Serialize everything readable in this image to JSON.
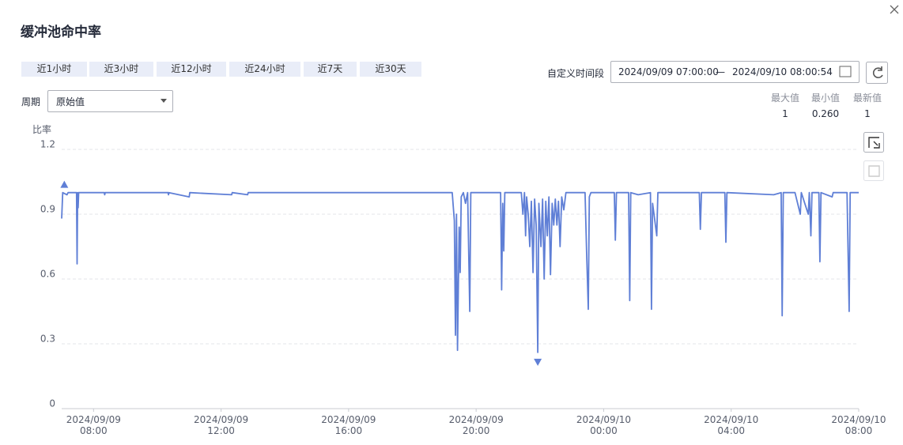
{
  "dialog": {
    "title": "缓冲池命中率",
    "ranges": [
      "近1小时",
      "近3小时",
      "近12小时",
      "近24小时",
      "近7天",
      "近30天"
    ],
    "custom_label": "自定义时间段",
    "start": "2024/09/09 07:00:00",
    "separator": "—",
    "end": "2024/09/10 08:00:54",
    "period_label": "周期",
    "period_value": "原始值",
    "stats": [
      {
        "label": "最大值",
        "value": "1"
      },
      {
        "label": "最小值",
        "value": "0.260"
      },
      {
        "label": "最新值",
        "value": "1"
      }
    ]
  },
  "chart_data": {
    "type": "line",
    "y_label": "比率",
    "grid": true,
    "ylim": [
      0,
      1.2
    ],
    "yticks": [
      0,
      0.3,
      0.6,
      0.9,
      1.2
    ],
    "xlim": [
      "2024/09/09 07:00",
      "2024/09/10 08:00"
    ],
    "xticks": [
      "2024/09/09 08:00",
      "2024/09/09 12:00",
      "2024/09/09 16:00",
      "2024/09/09 20:00",
      "2024/09/10 00:00",
      "2024/09/10 04:00",
      "2024/09/10 08:00"
    ],
    "x": [
      "2024/09/09 07:00",
      "2024/09/09 07:02",
      "2024/09/09 07:10",
      "2024/09/09 07:12",
      "2024/09/09 07:28",
      "2024/09/09 07:29",
      "2024/09/09 07:30",
      "2024/09/09 07:31",
      "2024/09/09 07:32",
      "2024/09/09 08:20",
      "2024/09/09 08:21",
      "2024/09/09 08:22",
      "2024/09/09 10:20",
      "2024/09/09 10:21",
      "2024/09/09 10:22",
      "2024/09/09 11:00",
      "2024/09/09 11:01",
      "2024/09/09 12:20",
      "2024/09/09 12:21",
      "2024/09/09 12:50",
      "2024/09/09 12:51",
      "2024/09/09 19:15",
      "2024/09/09 19:19",
      "2024/09/09 19:21",
      "2024/09/09 19:23",
      "2024/09/09 19:25",
      "2024/09/09 19:28",
      "2024/09/09 19:30",
      "2024/09/09 19:32",
      "2024/09/09 19:36",
      "2024/09/09 19:40",
      "2024/09/09 19:44",
      "2024/09/09 19:48",
      "2024/09/09 19:50",
      "2024/09/09 20:46",
      "2024/09/09 20:48",
      "2024/09/09 20:50",
      "2024/09/09 20:52",
      "2024/09/09 20:54",
      "2024/09/09 21:25",
      "2024/09/09 21:28",
      "2024/09/09 21:31",
      "2024/09/09 21:33",
      "2024/09/09 21:35",
      "2024/09/09 21:38",
      "2024/09/09 21:41",
      "2024/09/09 21:44",
      "2024/09/09 21:47",
      "2024/09/09 21:50",
      "2024/09/09 21:53",
      "2024/09/09 21:56",
      "2024/09/09 21:58",
      "2024/09/09 22:02",
      "2024/09/09 22:05",
      "2024/09/09 22:08",
      "2024/09/09 22:11",
      "2024/09/09 22:14",
      "2024/09/09 22:17",
      "2024/09/09 22:20",
      "2024/09/09 22:23",
      "2024/09/09 22:26",
      "2024/09/09 22:29",
      "2024/09/09 22:32",
      "2024/09/09 22:35",
      "2024/09/09 22:38",
      "2024/09/09 22:41",
      "2024/09/09 22:45",
      "2024/09/09 22:49",
      "2024/09/09 23:25",
      "2024/09/09 23:28",
      "2024/09/09 23:31",
      "2024/09/09 23:33",
      "2024/09/09 23:36",
      "2024/09/10 00:20",
      "2024/09/10 00:22",
      "2024/09/10 00:24",
      "2024/09/10 00:47",
      "2024/09/10 00:49",
      "2024/09/10 00:51",
      "2024/09/10 01:05",
      "2024/09/10 01:28",
      "2024/09/10 01:30",
      "2024/09/10 01:32",
      "2024/09/10 01:40",
      "2024/09/10 01:42",
      "2024/09/10 03:00",
      "2024/09/10 03:02",
      "2024/09/10 03:04",
      "2024/09/10 03:48",
      "2024/09/10 03:50",
      "2024/09/10 03:52",
      "2024/09/10 05:20",
      "2024/09/10 05:34",
      "2024/09/10 05:36",
      "2024/09/10 05:38",
      "2024/09/10 06:00",
      "2024/09/10 06:10",
      "2024/09/10 06:12",
      "2024/09/10 06:25",
      "2024/09/10 06:27",
      "2024/09/10 06:30",
      "2024/09/10 06:32",
      "2024/09/10 06:45",
      "2024/09/10 06:47",
      "2024/09/10 06:49",
      "2024/09/10 07:10",
      "2024/09/10 07:12",
      "2024/09/10 07:38",
      "2024/09/10 07:42",
      "2024/09/10 07:44",
      "2024/09/10 08:00"
    ],
    "series": [
      {
        "color": "#5f7fd6",
        "values": [
          0.88,
          1,
          0.99,
          1,
          1,
          0.67,
          1,
          0.93,
          1,
          1,
          0.99,
          1,
          1,
          0.99,
          1,
          0.98,
          1,
          0.99,
          1,
          0.99,
          1,
          1,
          0.87,
          0.34,
          0.9,
          0.27,
          0.84,
          0.63,
          0.98,
          1,
          0.95,
          1,
          0.45,
          1,
          1,
          0.55,
          0.95,
          0.73,
          1,
          1,
          0.9,
          1,
          0.8,
          0.98,
          0.9,
          0.75,
          0.96,
          0.63,
          0.97,
          0.85,
          0.26,
          0.95,
          0.75,
          0.97,
          0.6,
          0.96,
          0.8,
          0.98,
          0.62,
          0.95,
          0.85,
          0.97,
          0.85,
          0.96,
          0.75,
          0.98,
          0.92,
          1,
          1,
          0.72,
          0.46,
          0.98,
          1,
          1,
          0.78,
          1,
          1,
          0.5,
          1,
          0.99,
          1,
          0.46,
          0.95,
          0.8,
          1,
          1,
          0.83,
          1,
          1,
          0.77,
          1,
          0.99,
          1,
          0.43,
          1,
          1,
          0.9,
          1,
          0.9,
          1,
          0.8,
          1,
          1,
          0.68,
          1,
          0.98,
          1,
          1,
          0.45,
          1,
          1
        ]
      }
    ]
  }
}
